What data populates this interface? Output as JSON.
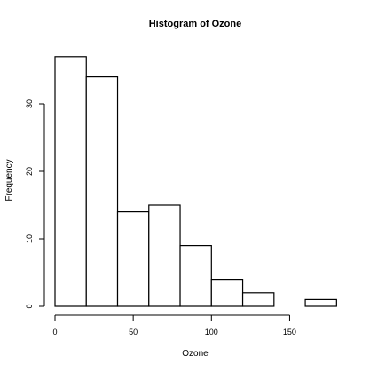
{
  "chart_data": {
    "type": "bar",
    "subtype": "histogram",
    "title": "Histogram of Ozone",
    "xlabel": "Ozone",
    "ylabel": "Frequency",
    "bins": [
      {
        "start": 0,
        "end": 20,
        "count": 37
      },
      {
        "start": 20,
        "end": 40,
        "count": 34
      },
      {
        "start": 40,
        "end": 60,
        "count": 14
      },
      {
        "start": 60,
        "end": 80,
        "count": 15
      },
      {
        "start": 80,
        "end": 100,
        "count": 9
      },
      {
        "start": 100,
        "end": 120,
        "count": 4
      },
      {
        "start": 120,
        "end": 140,
        "count": 2
      },
      {
        "start": 140,
        "end": 160,
        "count": 0
      },
      {
        "start": 160,
        "end": 180,
        "count": 1
      }
    ],
    "xticks": [
      0,
      50,
      100,
      150
    ],
    "yticks": [
      0,
      10,
      20,
      30
    ],
    "xlim": [
      0,
      180
    ],
    "ylim": [
      0,
      37
    ],
    "grid": false,
    "legend": "none",
    "colors": {
      "bar_fill": "#ffffff",
      "bar_stroke": "#000000"
    }
  }
}
